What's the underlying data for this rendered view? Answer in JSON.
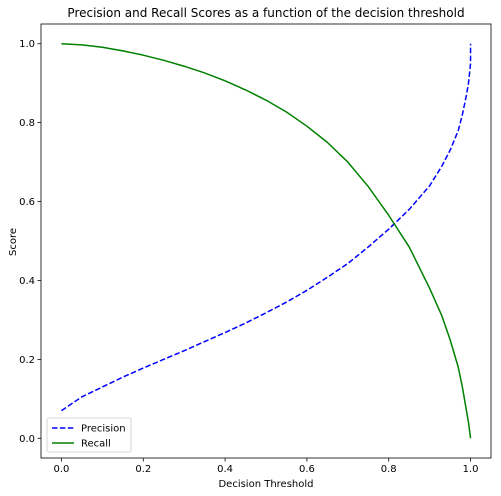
{
  "chart_data": {
    "type": "line",
    "title": "Precision and Recall Scores as a function of the decision threshold",
    "xlabel": "Decision Threshold",
    "ylabel": "Score",
    "xlim": [
      -0.05,
      1.05
    ],
    "ylim": [
      -0.05,
      1.05
    ],
    "x_ticks": [
      "0.0",
      "0.2",
      "0.4",
      "0.6",
      "0.8",
      "1.0"
    ],
    "y_ticks": [
      "0.0",
      "0.2",
      "0.4",
      "0.6",
      "0.8",
      "1.0"
    ],
    "grid": false,
    "legend_position": "lower-left",
    "series": [
      {
        "name": "Precision",
        "color": "#0000ff",
        "style": "dashed",
        "x": [
          0.0,
          0.05,
          0.1,
          0.15,
          0.2,
          0.25,
          0.3,
          0.35,
          0.4,
          0.45,
          0.5,
          0.55,
          0.6,
          0.65,
          0.7,
          0.75,
          0.8,
          0.85,
          0.9,
          0.93,
          0.95,
          0.97,
          0.98,
          0.99,
          0.995,
          1.0,
          1.0
        ],
        "y": [
          0.07,
          0.105,
          0.13,
          0.155,
          0.178,
          0.2,
          0.222,
          0.245,
          0.268,
          0.292,
          0.318,
          0.345,
          0.375,
          0.408,
          0.443,
          0.485,
          0.53,
          0.58,
          0.64,
          0.69,
          0.73,
          0.78,
          0.82,
          0.87,
          0.9,
          0.95,
          1.0
        ]
      },
      {
        "name": "Recall",
        "color": "#008000",
        "style": "solid",
        "x": [
          0.0,
          0.05,
          0.1,
          0.15,
          0.2,
          0.25,
          0.3,
          0.35,
          0.4,
          0.45,
          0.5,
          0.55,
          0.6,
          0.65,
          0.7,
          0.75,
          0.8,
          0.85,
          0.9,
          0.93,
          0.95,
          0.97,
          0.98,
          0.99,
          0.995,
          1.0
        ],
        "y": [
          1.0,
          0.997,
          0.991,
          0.982,
          0.971,
          0.958,
          0.943,
          0.926,
          0.906,
          0.883,
          0.857,
          0.827,
          0.791,
          0.75,
          0.7,
          0.638,
          0.565,
          0.485,
          0.38,
          0.31,
          0.25,
          0.18,
          0.13,
          0.07,
          0.04,
          0.0
        ]
      }
    ]
  }
}
